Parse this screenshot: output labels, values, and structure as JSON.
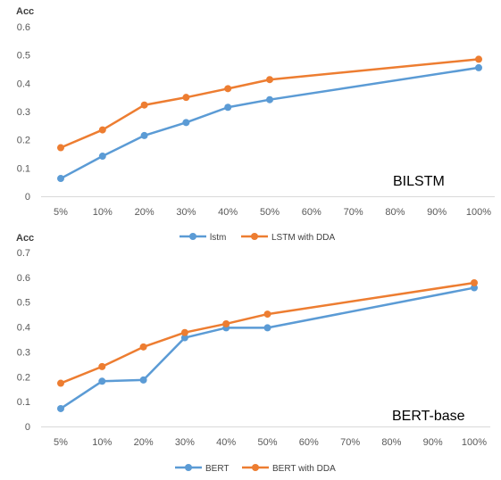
{
  "chart_data": [
    {
      "type": "line",
      "title": "",
      "annotation": "BILSTM",
      "xlabel": "",
      "ylabel": "Acc",
      "ylim": [
        0,
        0.6
      ],
      "yticks": [
        "0",
        "0.1",
        "0.2",
        "0.3",
        "0.4",
        "0.5",
        "0.6"
      ],
      "categories": [
        "5%",
        "10%",
        "20%",
        "30%",
        "40%",
        "50%",
        "60%",
        "70%",
        "80%",
        "90%",
        "100%"
      ],
      "x": [
        5,
        10,
        20,
        30,
        40,
        50,
        100
      ],
      "grid": false,
      "legend_position": "bottom",
      "series": [
        {
          "name": "lstm",
          "color": "#5b9bd5",
          "values": [
            0.063,
            0.142,
            0.215,
            0.261,
            0.315,
            0.342,
            0.455
          ]
        },
        {
          "name": "LSTM with DDA",
          "color": "#ed7d31",
          "values": [
            0.172,
            0.235,
            0.323,
            0.35,
            0.381,
            0.413,
            0.485
          ]
        }
      ]
    },
    {
      "type": "line",
      "title": "",
      "annotation": "BERT-base",
      "xlabel": "",
      "ylabel": "Acc",
      "ylim": [
        0,
        0.7
      ],
      "yticks": [
        "0",
        "0.1",
        "0.2",
        "0.3",
        "0.4",
        "0.5",
        "0.6",
        "0.7"
      ],
      "categories": [
        "5%",
        "10%",
        "20%",
        "30%",
        "40%",
        "50%",
        "60%",
        "70%",
        "80%",
        "90%",
        "100%"
      ],
      "x": [
        5,
        10,
        20,
        30,
        40,
        50,
        100
      ],
      "grid": false,
      "legend_position": "bottom",
      "series": [
        {
          "name": "BERT",
          "color": "#5b9bd5",
          "values": [
            0.072,
            0.182,
            0.187,
            0.357,
            0.397,
            0.397,
            0.558
          ]
        },
        {
          "name": "BERT with DDA",
          "color": "#ed7d31",
          "values": [
            0.174,
            0.241,
            0.32,
            0.378,
            0.413,
            0.452,
            0.578
          ]
        }
      ]
    }
  ]
}
